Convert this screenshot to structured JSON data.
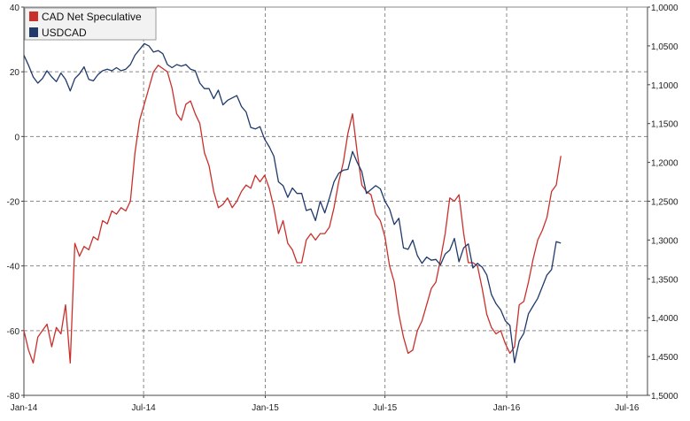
{
  "chart_data": {
    "type": "line",
    "legend": {
      "placement": "top-left",
      "entries": [
        {
          "label": "CAD Net Speculative",
          "color": "#c9302c"
        },
        {
          "label": "USDCAD",
          "color": "#1f3a6b"
        }
      ]
    },
    "x_tick_labels": [
      "Jan-14",
      "Jul-14",
      "Jan-15",
      "Jul-15",
      "Jan-16",
      "Jul-16"
    ],
    "x_tick_dates": [
      "2014-01-01",
      "2014-07-01",
      "2015-01-01",
      "2015-07-01",
      "2016-01-01",
      "2016-07-01"
    ],
    "xlim": [
      "2014-01-01",
      "2016-08-01"
    ],
    "y_left": {
      "range": [
        -80,
        40
      ],
      "ticks": [
        40,
        20,
        0,
        -20,
        -40,
        -60,
        -80
      ],
      "tick_labels": [
        "40",
        "20",
        "0",
        "-20",
        "-40",
        "-60",
        "-80"
      ]
    },
    "y_right": {
      "range": [
        1.0,
        1.5
      ],
      "inverted": true,
      "ticks": [
        1.0,
        1.05,
        1.1,
        1.15,
        1.2,
        1.25,
        1.3,
        1.35,
        1.4,
        1.45,
        1.5
      ],
      "tick_labels": [
        "1,0000",
        "1,0500",
        "1,1000",
        "1,1500",
        "1,2000",
        "1,2500",
        "1,3000",
        "1,3500",
        "1,4000",
        "1,4500",
        "1,5000"
      ]
    },
    "grid": true,
    "series": [
      {
        "name": "CAD Net Speculative",
        "axis": "left",
        "color": "#c9302c",
        "points": [
          [
            "2014-01-01",
            -60
          ],
          [
            "2014-01-08",
            -66
          ],
          [
            "2014-01-15",
            -70
          ],
          [
            "2014-01-22",
            -62
          ],
          [
            "2014-01-29",
            -60
          ],
          [
            "2014-02-05",
            -58
          ],
          [
            "2014-02-12",
            -65
          ],
          [
            "2014-02-19",
            -59
          ],
          [
            "2014-02-26",
            -61
          ],
          [
            "2014-03-05",
            -52
          ],
          [
            "2014-03-12",
            -70
          ],
          [
            "2014-03-19",
            -33
          ],
          [
            "2014-03-26",
            -37
          ],
          [
            "2014-04-02",
            -34
          ],
          [
            "2014-04-09",
            -35
          ],
          [
            "2014-04-16",
            -31
          ],
          [
            "2014-04-23",
            -32
          ],
          [
            "2014-04-30",
            -26
          ],
          [
            "2014-05-07",
            -27
          ],
          [
            "2014-05-14",
            -23
          ],
          [
            "2014-05-21",
            -24
          ],
          [
            "2014-05-28",
            -22
          ],
          [
            "2014-06-04",
            -23
          ],
          [
            "2014-06-11",
            -20
          ],
          [
            "2014-06-18",
            -5
          ],
          [
            "2014-06-25",
            5
          ],
          [
            "2014-07-02",
            10
          ],
          [
            "2014-07-09",
            15
          ],
          [
            "2014-07-16",
            20
          ],
          [
            "2014-07-23",
            22
          ],
          [
            "2014-07-30",
            21
          ],
          [
            "2014-08-06",
            20
          ],
          [
            "2014-08-13",
            15
          ],
          [
            "2014-08-20",
            7
          ],
          [
            "2014-08-27",
            5
          ],
          [
            "2014-09-03",
            10
          ],
          [
            "2014-09-10",
            11
          ],
          [
            "2014-09-17",
            7
          ],
          [
            "2014-09-24",
            4
          ],
          [
            "2014-10-01",
            -5
          ],
          [
            "2014-10-08",
            -9
          ],
          [
            "2014-10-15",
            -17
          ],
          [
            "2014-10-22",
            -22
          ],
          [
            "2014-10-29",
            -21
          ],
          [
            "2014-11-05",
            -19
          ],
          [
            "2014-11-12",
            -22
          ],
          [
            "2014-11-19",
            -20
          ],
          [
            "2014-11-26",
            -17
          ],
          [
            "2014-12-03",
            -15
          ],
          [
            "2014-12-10",
            -16
          ],
          [
            "2014-12-17",
            -12
          ],
          [
            "2014-12-24",
            -14
          ],
          [
            "2014-12-31",
            -12
          ],
          [
            "2015-01-07",
            -16
          ],
          [
            "2015-01-14",
            -22
          ],
          [
            "2015-01-21",
            -30
          ],
          [
            "2015-01-28",
            -26
          ],
          [
            "2015-02-04",
            -33
          ],
          [
            "2015-02-11",
            -35
          ],
          [
            "2015-02-18",
            -39
          ],
          [
            "2015-02-25",
            -39
          ],
          [
            "2015-03-04",
            -32
          ],
          [
            "2015-03-11",
            -30
          ],
          [
            "2015-03-18",
            -32
          ],
          [
            "2015-03-25",
            -30
          ],
          [
            "2015-04-01",
            -30
          ],
          [
            "2015-04-08",
            -28
          ],
          [
            "2015-04-15",
            -22
          ],
          [
            "2015-04-22",
            -14
          ],
          [
            "2015-04-29",
            -8
          ],
          [
            "2015-05-06",
            1
          ],
          [
            "2015-05-13",
            7
          ],
          [
            "2015-05-20",
            -5
          ],
          [
            "2015-05-27",
            -15
          ],
          [
            "2015-06-03",
            -17
          ],
          [
            "2015-06-10",
            -18
          ],
          [
            "2015-06-17",
            -24
          ],
          [
            "2015-06-24",
            -26
          ],
          [
            "2015-07-01",
            -31
          ],
          [
            "2015-07-08",
            -40
          ],
          [
            "2015-07-15",
            -45
          ],
          [
            "2015-07-22",
            -55
          ],
          [
            "2015-07-29",
            -62
          ],
          [
            "2015-08-05",
            -67
          ],
          [
            "2015-08-12",
            -66
          ],
          [
            "2015-08-19",
            -60
          ],
          [
            "2015-08-26",
            -57
          ],
          [
            "2015-09-02",
            -52
          ],
          [
            "2015-09-09",
            -47
          ],
          [
            "2015-09-16",
            -45
          ],
          [
            "2015-09-23",
            -38
          ],
          [
            "2015-09-30",
            -30
          ],
          [
            "2015-10-07",
            -19
          ],
          [
            "2015-10-14",
            -20
          ],
          [
            "2015-10-21",
            -18
          ],
          [
            "2015-10-28",
            -30
          ],
          [
            "2015-11-04",
            -39
          ],
          [
            "2015-11-11",
            -39
          ],
          [
            "2015-11-18",
            -40
          ],
          [
            "2015-11-25",
            -47
          ],
          [
            "2015-12-02",
            -55
          ],
          [
            "2015-12-09",
            -59
          ],
          [
            "2015-12-16",
            -61
          ],
          [
            "2015-12-23",
            -60
          ],
          [
            "2015-12-30",
            -64
          ],
          [
            "2016-01-06",
            -67
          ],
          [
            "2016-01-13",
            -65
          ],
          [
            "2016-01-20",
            -52
          ],
          [
            "2016-01-27",
            -51
          ],
          [
            "2016-02-03",
            -45
          ],
          [
            "2016-02-10",
            -38
          ],
          [
            "2016-02-17",
            -32
          ],
          [
            "2016-02-24",
            -29
          ],
          [
            "2016-03-02",
            -25
          ],
          [
            "2016-03-09",
            -17
          ],
          [
            "2016-03-16",
            -15
          ],
          [
            "2016-03-23",
            -6
          ]
        ]
      },
      {
        "name": "USDCAD",
        "axis": "right",
        "color": "#1f3a6b",
        "points": [
          [
            "2014-01-01",
            1.062
          ],
          [
            "2014-01-08",
            1.075
          ],
          [
            "2014-01-15",
            1.09
          ],
          [
            "2014-01-22",
            1.098
          ],
          [
            "2014-01-29",
            1.092
          ],
          [
            "2014-02-05",
            1.082
          ],
          [
            "2014-02-12",
            1.09
          ],
          [
            "2014-02-19",
            1.096
          ],
          [
            "2014-02-26",
            1.085
          ],
          [
            "2014-03-05",
            1.093
          ],
          [
            "2014-03-12",
            1.108
          ],
          [
            "2014-03-19",
            1.092
          ],
          [
            "2014-03-26",
            1.086
          ],
          [
            "2014-04-02",
            1.077
          ],
          [
            "2014-04-09",
            1.093
          ],
          [
            "2014-04-16",
            1.095
          ],
          [
            "2014-04-23",
            1.087
          ],
          [
            "2014-04-30",
            1.082
          ],
          [
            "2014-05-07",
            1.08
          ],
          [
            "2014-05-14",
            1.082
          ],
          [
            "2014-05-21",
            1.078
          ],
          [
            "2014-05-28",
            1.082
          ],
          [
            "2014-06-04",
            1.08
          ],
          [
            "2014-06-11",
            1.074
          ],
          [
            "2014-06-18",
            1.062
          ],
          [
            "2014-07-02",
            1.047
          ],
          [
            "2014-07-09",
            1.05
          ],
          [
            "2014-07-16",
            1.058
          ],
          [
            "2014-07-23",
            1.056
          ],
          [
            "2014-07-30",
            1.06
          ],
          [
            "2014-08-06",
            1.074
          ],
          [
            "2014-08-13",
            1.078
          ],
          [
            "2014-08-20",
            1.074
          ],
          [
            "2014-08-27",
            1.076
          ],
          [
            "2014-09-03",
            1.074
          ],
          [
            "2014-09-10",
            1.08
          ],
          [
            "2014-09-17",
            1.082
          ],
          [
            "2014-09-24",
            1.098
          ],
          [
            "2014-10-01",
            1.105
          ],
          [
            "2014-10-08",
            1.105
          ],
          [
            "2014-10-15",
            1.118
          ],
          [
            "2014-10-22",
            1.107
          ],
          [
            "2014-10-29",
            1.126
          ],
          [
            "2014-11-05",
            1.12
          ],
          [
            "2014-11-12",
            1.117
          ],
          [
            "2014-11-19",
            1.114
          ],
          [
            "2014-11-26",
            1.128
          ],
          [
            "2014-12-03",
            1.135
          ],
          [
            "2014-12-10",
            1.155
          ],
          [
            "2014-12-17",
            1.157
          ],
          [
            "2014-12-24",
            1.154
          ],
          [
            "2014-12-31",
            1.17
          ],
          [
            "2015-01-07",
            1.18
          ],
          [
            "2015-01-14",
            1.192
          ],
          [
            "2015-01-21",
            1.225
          ],
          [
            "2015-01-28",
            1.23
          ],
          [
            "2015-02-04",
            1.245
          ],
          [
            "2015-02-11",
            1.233
          ],
          [
            "2015-02-18",
            1.24
          ],
          [
            "2015-02-25",
            1.24
          ],
          [
            "2015-03-04",
            1.262
          ],
          [
            "2015-03-11",
            1.26
          ],
          [
            "2015-03-18",
            1.275
          ],
          [
            "2015-03-25",
            1.25
          ],
          [
            "2015-04-01",
            1.265
          ],
          [
            "2015-04-08",
            1.246
          ],
          [
            "2015-04-15",
            1.225
          ],
          [
            "2015-04-22",
            1.214
          ],
          [
            "2015-04-29",
            1.21
          ],
          [
            "2015-05-06",
            1.209
          ],
          [
            "2015-05-13",
            1.186
          ],
          [
            "2015-05-20",
            1.2
          ],
          [
            "2015-05-27",
            1.212
          ],
          [
            "2015-06-03",
            1.24
          ],
          [
            "2015-06-10",
            1.235
          ],
          [
            "2015-06-17",
            1.23
          ],
          [
            "2015-06-24",
            1.234
          ],
          [
            "2015-07-01",
            1.25
          ],
          [
            "2015-07-08",
            1.26
          ],
          [
            "2015-07-15",
            1.28
          ],
          [
            "2015-07-22",
            1.272
          ],
          [
            "2015-07-29",
            1.31
          ],
          [
            "2015-08-05",
            1.312
          ],
          [
            "2015-08-12",
            1.3
          ],
          [
            "2015-08-19",
            1.32
          ],
          [
            "2015-08-26",
            1.33
          ],
          [
            "2015-09-02",
            1.322
          ],
          [
            "2015-09-09",
            1.326
          ],
          [
            "2015-09-16",
            1.325
          ],
          [
            "2015-09-23",
            1.332
          ],
          [
            "2015-09-30",
            1.318
          ],
          [
            "2015-10-07",
            1.313
          ],
          [
            "2015-10-14",
            1.298
          ],
          [
            "2015-10-21",
            1.328
          ],
          [
            "2015-10-28",
            1.31
          ],
          [
            "2015-11-04",
            1.305
          ],
          [
            "2015-11-11",
            1.336
          ],
          [
            "2015-11-18",
            1.33
          ],
          [
            "2015-11-25",
            1.335
          ],
          [
            "2015-12-02",
            1.345
          ],
          [
            "2015-12-09",
            1.37
          ],
          [
            "2015-12-16",
            1.382
          ],
          [
            "2015-12-23",
            1.39
          ],
          [
            "2015-12-30",
            1.404
          ],
          [
            "2016-01-06",
            1.41
          ],
          [
            "2016-01-13",
            1.458
          ],
          [
            "2016-01-20",
            1.43
          ],
          [
            "2016-01-27",
            1.42
          ],
          [
            "2016-02-03",
            1.395
          ],
          [
            "2016-02-10",
            1.385
          ],
          [
            "2016-02-17",
            1.375
          ],
          [
            "2016-02-24",
            1.36
          ],
          [
            "2016-03-02",
            1.345
          ],
          [
            "2016-03-09",
            1.338
          ],
          [
            "2016-03-16",
            1.302
          ],
          [
            "2016-03-23",
            1.304
          ]
        ]
      }
    ]
  }
}
